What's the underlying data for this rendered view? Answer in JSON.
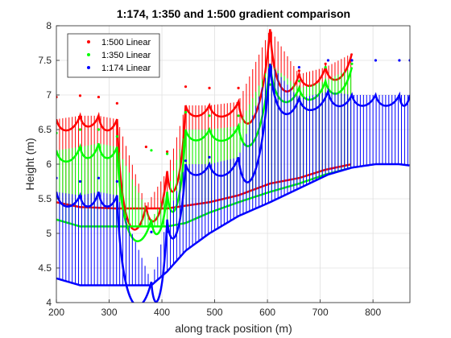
{
  "chart_data": {
    "type": "line",
    "title": "1:174, 1:350 and 1:500 gradient comparison",
    "xlabel": "along track position (m)",
    "ylabel": "Height (m)",
    "xlim": [
      200,
      870
    ],
    "ylim": [
      4,
      8
    ],
    "xticks": [
      200,
      300,
      400,
      500,
      600,
      700,
      800
    ],
    "yticks": [
      4,
      4.5,
      5,
      5.5,
      6,
      6.5,
      7,
      7.5,
      8
    ],
    "grid": true,
    "legend_position": "top-left",
    "colors": {
      "1:500": "#ff0000",
      "1:350": "#00ff00",
      "1:174": "#0000ff",
      "axes": "#262626",
      "grid": "#e0e0e0"
    },
    "series": [
      {
        "name": "1:500 Linear",
        "color": "#ff0000",
        "cross_x": [
          200,
          245,
          280,
          315,
          370,
          410,
          445,
          490,
          545,
          605,
          660,
          710,
          760
        ],
        "upper_y": [
          6.65,
          6.7,
          6.7,
          6.65,
          5.4,
          5.9,
          6.85,
          6.85,
          6.9,
          7.95,
          7.3,
          7.4,
          7.6
        ],
        "lower_y": [
          5.45,
          5.38,
          5.37,
          5.36,
          5.36,
          5.36,
          5.4,
          5.45,
          5.55,
          5.72,
          5.8,
          5.92,
          6.0
        ],
        "peak_points_y": [
          6.97,
          6.99,
          6.97,
          6.88,
          6.25,
          6.18,
          7.12,
          7.1,
          7.1,
          7.3,
          7.35,
          7.45,
          7.5
        ]
      },
      {
        "name": "1:350 Linear",
        "color": "#00ff00",
        "cross_x": [
          200,
          245,
          280,
          315,
          380,
          410,
          445,
          490,
          545,
          605,
          660,
          710,
          760
        ],
        "upper_y": [
          6.2,
          6.25,
          6.3,
          6.25,
          5.2,
          5.6,
          6.5,
          6.5,
          6.55,
          7.45,
          7.1,
          7.2,
          7.4
        ],
        "lower_y": [
          5.2,
          5.1,
          5.1,
          5.1,
          5.1,
          5.1,
          5.15,
          5.3,
          5.45,
          5.6,
          5.72,
          5.85,
          5.95
        ],
        "peak_points_y": [
          6.45,
          6.5,
          6.5,
          6.4,
          6.2,
          6.15,
          6.75,
          6.7,
          6.7,
          7.15,
          7.2,
          7.4,
          7.45
        ]
      },
      {
        "name": "1:174 Linear",
        "color": "#0000ff",
        "cross_x": [
          200,
          245,
          280,
          315,
          380,
          410,
          445,
          490,
          545,
          605,
          660,
          715,
          760,
          805,
          850,
          870
        ],
        "upper_y": [
          5.6,
          5.55,
          5.6,
          5.55,
          4.3,
          5.2,
          6.0,
          6.0,
          6.1,
          7.45,
          6.95,
          7.05,
          7.0,
          7.0,
          7.0,
          7.0
        ],
        "lower_y": [
          4.35,
          4.25,
          4.25,
          4.25,
          4.25,
          4.45,
          4.75,
          5.0,
          5.25,
          5.45,
          5.65,
          5.85,
          5.95,
          6.0,
          6.0,
          5.98
        ],
        "peak_points_y": [
          5.8,
          5.75,
          5.8,
          5.75,
          5.02,
          5.02,
          6.05,
          6.1,
          6.05,
          7.35,
          7.4,
          7.5,
          7.5,
          7.5,
          7.5,
          7.5
        ]
      }
    ]
  }
}
